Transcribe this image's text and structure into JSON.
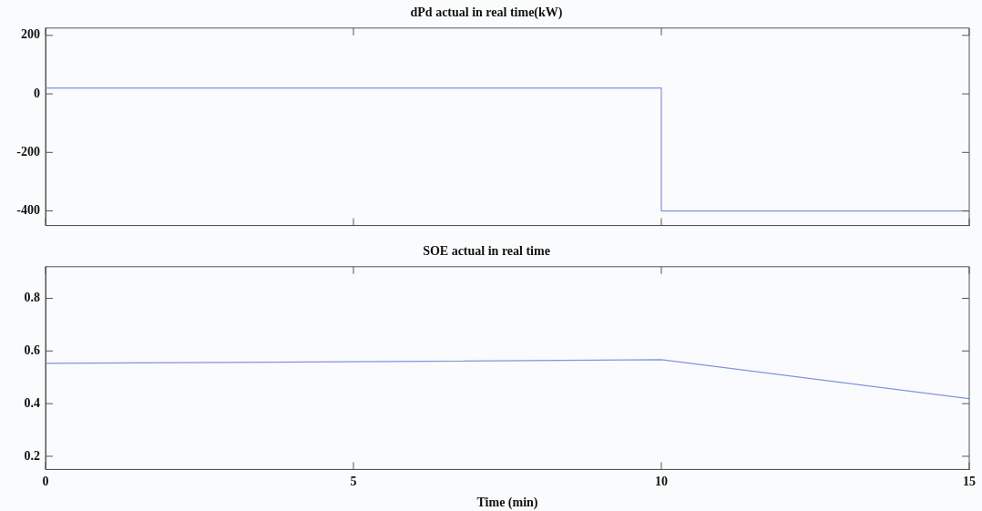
{
  "chart_data": [
    {
      "type": "line",
      "title": "dPd actual in real time(kW)",
      "x": [
        0,
        10,
        10,
        15
      ],
      "series": [
        {
          "color": "#7f95e0",
          "values": [
            20,
            20,
            -400,
            -400
          ]
        }
      ],
      "xlim": [
        0,
        15
      ],
      "xticks": [
        0,
        5,
        10,
        15
      ],
      "ylim": [
        -450,
        225
      ],
      "yticks": [
        -400,
        -200,
        0,
        200
      ],
      "tick_labels": "y",
      "grid": false,
      "legend": false,
      "marker": "none",
      "line_style": "solid"
    },
    {
      "type": "line",
      "title": "SOE actual in real time",
      "xlabel": "Time (min)",
      "x": [
        0,
        5,
        10,
        15
      ],
      "series": [
        {
          "color": "#7f95e0",
          "values": [
            0.553,
            0.559,
            0.567,
            0.419
          ]
        }
      ],
      "xlim": [
        0,
        15
      ],
      "xticks": [
        0,
        5,
        10,
        15
      ],
      "ylim": [
        0.15,
        0.92
      ],
      "yticks": [
        0.2,
        0.4,
        0.6,
        0.8
      ],
      "grid": false,
      "legend": false,
      "marker": "none",
      "line_style": "solid"
    }
  ]
}
